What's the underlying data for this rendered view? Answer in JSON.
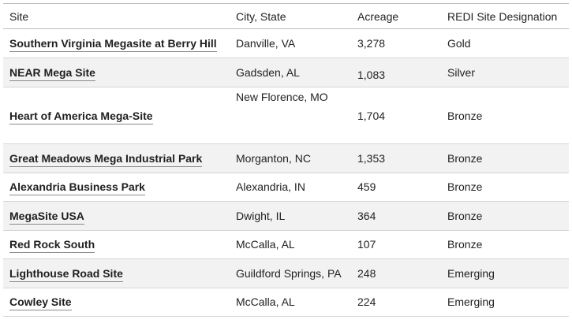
{
  "headers": {
    "site": "Site",
    "city": "City, State",
    "acreage": "Acreage",
    "designation": "REDI Site Designation"
  },
  "rows": [
    {
      "site": "Southern Virginia Megasite at Berry Hill",
      "city": "Danville, VA",
      "acreage": "3,278",
      "designation": "Gold"
    },
    {
      "site": "NEAR Mega Site",
      "city": "Gadsden, AL",
      "acreage": "1,083",
      "designation": "Silver"
    },
    {
      "site": "Heart of America Mega-Site",
      "city": "New Florence, MO",
      "acreage": "1,704",
      "designation": "Bronze"
    },
    {
      "site": "Great Meadows Mega Industrial Park",
      "city": "Morganton, NC",
      "acreage": "1,353",
      "designation": "Bronze"
    },
    {
      "site": "Alexandria Business Park",
      "city": "Alexandria, IN",
      "acreage": "459",
      "designation": "Bronze"
    },
    {
      "site": "MegaSite USA",
      "city": "Dwight, IL",
      "acreage": "364",
      "designation": "Bronze"
    },
    {
      "site": "Red Rock South",
      "city": "McCalla, AL",
      "acreage": "107",
      "designation": "Bronze"
    },
    {
      "site": "Lighthouse Road Site",
      "city": "Guildford Springs, PA",
      "acreage": "248",
      "designation": "Emerging"
    },
    {
      "site": "Cowley Site",
      "city": "McCalla, AL",
      "acreage": "224",
      "designation": "Emerging"
    }
  ]
}
